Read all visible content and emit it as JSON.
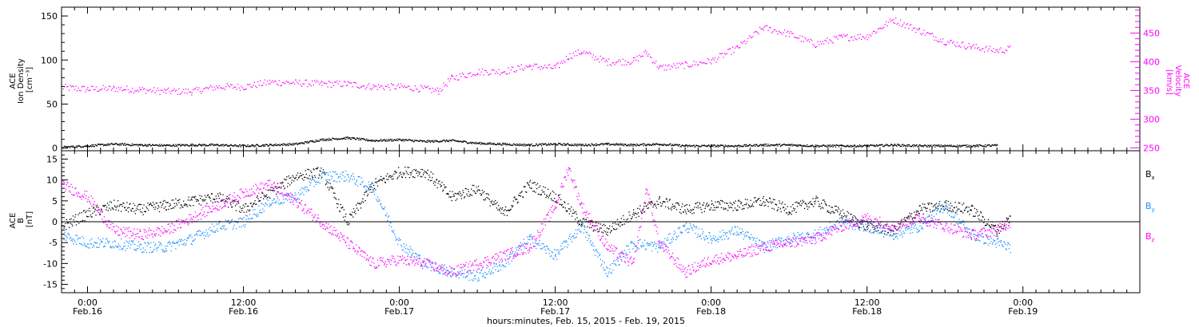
{
  "chart_data": {
    "type": "scatter",
    "xlabel": "hours:minutes, Feb. 15, 2015 - Feb. 19, 2015",
    "x_ticks": [
      {
        "hours": 0,
        "time": "0:00",
        "date": "Feb.16"
      },
      {
        "hours": 12,
        "time": "12:00",
        "date": "Feb.16"
      },
      {
        "hours": 24,
        "time": "0:00",
        "date": "Feb.17"
      },
      {
        "hours": 36,
        "time": "12:00",
        "date": "Feb.17"
      },
      {
        "hours": 48,
        "time": "0:00",
        "date": "Feb.18"
      },
      {
        "hours": 60,
        "time": "12:00",
        "date": "Feb.18"
      },
      {
        "hours": 72,
        "time": "0:00",
        "date": "Feb.19"
      }
    ],
    "xlim": [
      -2,
      81
    ],
    "grid": false,
    "panels": [
      {
        "name": "density-velocity",
        "ylabel_left": [
          "ACE",
          "Ion Density",
          "[cm⁻³]"
        ],
        "ylabel_right": [
          "ACE",
          "Velocity",
          "[km/s]"
        ],
        "ylim_left": [
          -3,
          160
        ],
        "yticks_left": [
          0,
          50,
          100,
          150
        ],
        "ylim_right": [
          245,
          495
        ],
        "yticks_right": [
          250,
          300,
          350,
          400,
          450
        ],
        "series": [
          {
            "key": "density",
            "axis": "left",
            "color": "#000000",
            "points": [
              [
                -2,
                1.5
              ],
              [
                0,
                3
              ],
              [
                2,
                5
              ],
              [
                4,
                4
              ],
              [
                6,
                3.5
              ],
              [
                8,
                4
              ],
              [
                10,
                4
              ],
              [
                12,
                3
              ],
              [
                14,
                4
              ],
              [
                16,
                5
              ],
              [
                18,
                10
              ],
              [
                20,
                12
              ],
              [
                22,
                9
              ],
              [
                24,
                10
              ],
              [
                26,
                8
              ],
              [
                28,
                9
              ],
              [
                30,
                6
              ],
              [
                32,
                5
              ],
              [
                34,
                4
              ],
              [
                36,
                5
              ],
              [
                38,
                4
              ],
              [
                40,
                5
              ],
              [
                42,
                4
              ],
              [
                44,
                5
              ],
              [
                46,
                3
              ],
              [
                48,
                3
              ],
              [
                50,
                3
              ],
              [
                52,
                4
              ],
              [
                54,
                4
              ],
              [
                56,
                3
              ],
              [
                58,
                3
              ],
              [
                60,
                3
              ],
              [
                62,
                4
              ],
              [
                64,
                3
              ],
              [
                66,
                3
              ],
              [
                68,
                3
              ],
              [
                70,
                3.5
              ]
            ]
          },
          {
            "key": "velocity",
            "axis": "right",
            "color": "#ff00ff",
            "points": [
              [
                -2,
                356
              ],
              [
                0,
                353
              ],
              [
                2,
                354
              ],
              [
                4,
                352
              ],
              [
                6,
                349
              ],
              [
                8,
                349
              ],
              [
                10,
                357
              ],
              [
                12,
                357
              ],
              [
                14,
                365
              ],
              [
                16,
                364
              ],
              [
                18,
                362
              ],
              [
                20,
                362
              ],
              [
                22,
                357
              ],
              [
                24,
                357
              ],
              [
                26,
                353
              ],
              [
                27,
                350
              ],
              [
                28,
                372
              ],
              [
                30,
                383
              ],
              [
                32,
                384
              ],
              [
                34,
                393
              ],
              [
                36,
                390
              ],
              [
                37,
                410
              ],
              [
                38,
                418
              ],
              [
                40,
                400
              ],
              [
                42,
                402
              ],
              [
                43,
                417
              ],
              [
                44,
                390
              ],
              [
                46,
                395
              ],
              [
                48,
                402
              ],
              [
                50,
                425
              ],
              [
                52,
                460
              ],
              [
                54,
                449
              ],
              [
                56,
                431
              ],
              [
                58,
                443
              ],
              [
                60,
                445
              ],
              [
                62,
                474
              ],
              [
                64,
                455
              ],
              [
                66,
                436
              ],
              [
                68,
                427
              ],
              [
                70,
                420
              ],
              [
                71,
                423
              ]
            ]
          }
        ]
      },
      {
        "name": "magnetic-field",
        "ylabel_left": [
          "ACE",
          "B",
          "[nT]"
        ],
        "ylim_left": [
          -17,
          17
        ],
        "yticks_left": [
          -15,
          -10,
          -5,
          0,
          5,
          10,
          15
        ],
        "zero_line": true,
        "series": [
          {
            "key": "bx",
            "name": "Bx",
            "color": "#000000",
            "points": [
              [
                -2,
                -1
              ],
              [
                0,
                2
              ],
              [
                2,
                4
              ],
              [
                4,
                3
              ],
              [
                6,
                4
              ],
              [
                8,
                5
              ],
              [
                10,
                6
              ],
              [
                12,
                3
              ],
              [
                14,
                7
              ],
              [
                16,
                11
              ],
              [
                18,
                12
              ],
              [
                20,
                0
              ],
              [
                22,
                9
              ],
              [
                24,
                12
              ],
              [
                26,
                12
              ],
              [
                28,
                6
              ],
              [
                30,
                8
              ],
              [
                32,
                2
              ],
              [
                34,
                9
              ],
              [
                36,
                6
              ],
              [
                38,
                0
              ],
              [
                40,
                -2
              ],
              [
                42,
                2
              ],
              [
                44,
                5
              ],
              [
                46,
                3
              ],
              [
                48,
                4
              ],
              [
                50,
                4
              ],
              [
                52,
                5
              ],
              [
                54,
                3
              ],
              [
                56,
                5
              ],
              [
                58,
                2
              ],
              [
                60,
                -1
              ],
              [
                62,
                -2
              ],
              [
                64,
                3
              ],
              [
                66,
                4
              ],
              [
                68,
                3
              ],
              [
                70,
                -2
              ],
              [
                71,
                1
              ]
            ]
          },
          {
            "key": "by",
            "name": "By",
            "color": "#1e90ff",
            "points": [
              [
                -2,
                -3
              ],
              [
                0,
                -5
              ],
              [
                2,
                -5
              ],
              [
                4,
                -6
              ],
              [
                6,
                -6
              ],
              [
                8,
                -4
              ],
              [
                10,
                -1
              ],
              [
                12,
                0
              ],
              [
                14,
                5
              ],
              [
                16,
                6
              ],
              [
                18,
                11
              ],
              [
                20,
                11
              ],
              [
                22,
                8
              ],
              [
                24,
                -5
              ],
              [
                26,
                -10
              ],
              [
                28,
                -12
              ],
              [
                30,
                -13
              ],
              [
                32,
                -10
              ],
              [
                34,
                -4
              ],
              [
                36,
                -8
              ],
              [
                38,
                -1
              ],
              [
                40,
                -12
              ],
              [
                42,
                -5
              ],
              [
                44,
                -6
              ],
              [
                46,
                -1
              ],
              [
                48,
                -4
              ],
              [
                50,
                -2
              ],
              [
                52,
                -6
              ],
              [
                54,
                -4
              ],
              [
                56,
                -3
              ],
              [
                58,
                0
              ],
              [
                60,
                -1
              ],
              [
                62,
                -3
              ],
              [
                64,
                -1
              ],
              [
                66,
                4
              ],
              [
                68,
                -3
              ],
              [
                70,
                -5
              ],
              [
                71,
                -6
              ]
            ]
          },
          {
            "key": "bz",
            "name": "Bz",
            "color": "#ff00ff",
            "points": [
              [
                -2,
                9
              ],
              [
                0,
                6
              ],
              [
                2,
                -2
              ],
              [
                4,
                -3
              ],
              [
                6,
                -2
              ],
              [
                8,
                1
              ],
              [
                10,
                4
              ],
              [
                12,
                7
              ],
              [
                14,
                9
              ],
              [
                16,
                5
              ],
              [
                18,
                0
              ],
              [
                20,
                -5
              ],
              [
                22,
                -10
              ],
              [
                24,
                -9
              ],
              [
                26,
                -10
              ],
              [
                28,
                -12
              ],
              [
                30,
                -10
              ],
              [
                32,
                -8
              ],
              [
                34,
                -6
              ],
              [
                36,
                4
              ],
              [
                37,
                13
              ],
              [
                38,
                4
              ],
              [
                40,
                -6
              ],
              [
                42,
                -10
              ],
              [
                43,
                8
              ],
              [
                44,
                -5
              ],
              [
                46,
                -12
              ],
              [
                48,
                -9
              ],
              [
                50,
                -8
              ],
              [
                52,
                -6
              ],
              [
                54,
                -5
              ],
              [
                56,
                -4
              ],
              [
                58,
                -1
              ],
              [
                60,
                1
              ],
              [
                62,
                -1
              ],
              [
                64,
                1
              ],
              [
                66,
                -1
              ],
              [
                68,
                -3
              ],
              [
                70,
                -2
              ],
              [
                71,
                0
              ]
            ]
          }
        ]
      }
    ]
  },
  "labels": {
    "bx_main": "B",
    "bx_sub": "x",
    "by_main": "B",
    "by_sub": "y",
    "bz_main": "B",
    "bz_sub": "z"
  }
}
